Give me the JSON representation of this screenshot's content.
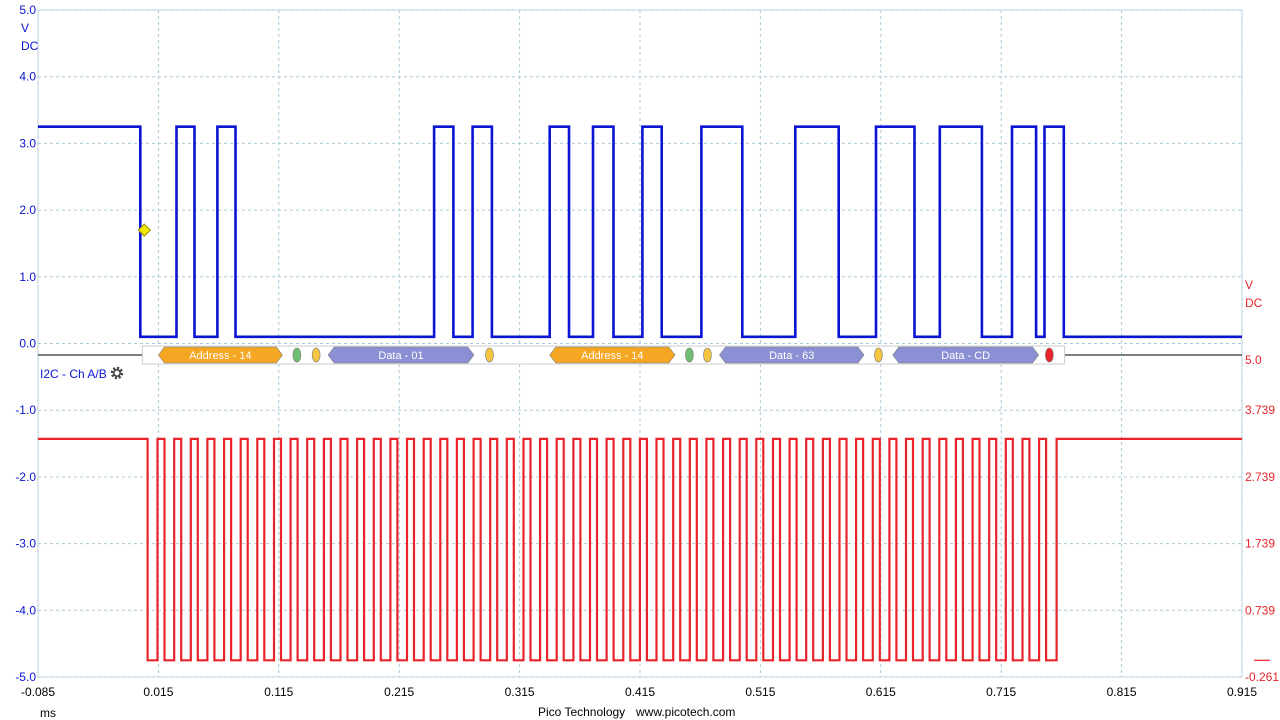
{
  "chart_data": {
    "type": "line",
    "x_axis": {
      "range": [
        -0.085,
        0.915
      ],
      "ticks": [
        "-0.085",
        "0.015",
        "0.115",
        "0.215",
        "0.315",
        "0.415",
        "0.515",
        "0.615",
        "0.715",
        "0.815",
        "0.915"
      ],
      "unit": "ms"
    },
    "y_axis_left": {
      "range": [
        -5.0,
        5.0
      ],
      "ticks": [
        "5.0",
        "4.0",
        "3.0",
        "2.0",
        "1.0",
        "0.0",
        "-1.0",
        "-2.0",
        "-3.0",
        "-4.0",
        "-5.0"
      ],
      "unit_line1": "V",
      "unit_line2": "DC",
      "color": "#0a14d2"
    },
    "y_axis_right": {
      "ticks": [
        {
          "label": "5.0",
          "at_left_v": -0.25
        },
        {
          "label": "3.739",
          "at_left_v": -1.0
        },
        {
          "label": "2.739",
          "at_left_v": -2.0
        },
        {
          "label": "1.739",
          "at_left_v": -3.0
        },
        {
          "label": "0.739",
          "at_left_v": -4.0
        },
        {
          "label": "-0.261",
          "at_left_v": -5.0
        }
      ],
      "unit_line1": "V",
      "unit_line2": "DC",
      "color": "#e8232a"
    },
    "grid": true,
    "series": [
      {
        "color": "#0a14d2",
        "low": 0.1,
        "high": 3.25,
        "transitions_ms": [
          -0.085,
          0.0,
          0.0,
          0.03,
          0.03,
          0.045,
          0.045,
          0.064,
          0.064,
          0.079,
          0.079,
          0.244,
          0.244,
          0.26,
          0.26,
          0.276,
          0.276,
          0.292,
          0.292,
          0.34,
          0.34,
          0.356,
          0.356,
          0.376,
          0.376,
          0.393,
          0.393,
          0.417,
          0.417,
          0.433,
          0.433,
          0.466,
          0.466,
          0.5,
          0.5,
          0.544,
          0.544,
          0.58,
          0.58,
          0.611,
          0.611,
          0.643,
          0.643,
          0.664,
          0.664,
          0.699,
          0.699,
          0.724,
          0.724,
          0.744,
          0.744,
          0.751,
          0.751,
          0.767,
          0.767,
          0.915
        ],
        "levels": [
          3.25,
          0.1,
          3.25,
          0.1,
          3.25,
          0.1,
          3.25,
          0.1,
          3.25,
          0.1,
          3.25,
          0.1,
          3.25,
          0.1,
          3.25,
          0.1,
          3.25,
          0.1,
          3.25,
          0.1,
          3.25,
          0.1,
          3.25,
          0.1,
          3.25,
          0.1,
          3.25,
          0.1
        ]
      },
      {
        "color": "#e8232a",
        "low": -4.75,
        "high": -1.43,
        "idle_until_ms": 0.006,
        "clock_start_ms": 0.006,
        "clock_end_ms": 0.752,
        "clock_cycles": 54,
        "idle_after_ms": 0.761
      }
    ],
    "decode": {
      "label": "I2C - Ch A/B",
      "packets": [
        {
          "text": "Address - 14",
          "start_ms": 0.015,
          "end_ms": 0.118,
          "color": "#f5a623"
        },
        {
          "text": "Data - 01",
          "start_ms": 0.156,
          "end_ms": 0.277,
          "color": "#8b8fd3"
        },
        {
          "text": "Address - 14",
          "start_ms": 0.34,
          "end_ms": 0.444,
          "color": "#f5a623"
        },
        {
          "text": "Data - 63",
          "start_ms": 0.481,
          "end_ms": 0.601,
          "color": "#8b8fd3"
        },
        {
          "text": "Data - CD",
          "start_ms": 0.625,
          "end_ms": 0.746,
          "color": "#8b8fd3"
        }
      ],
      "markers": [
        {
          "at_ms": 0.13,
          "color": "#6fbf73"
        },
        {
          "at_ms": 0.146,
          "color": "#f5c542"
        },
        {
          "at_ms": 0.29,
          "color": "#f5c542"
        },
        {
          "at_ms": 0.456,
          "color": "#6fbf73"
        },
        {
          "at_ms": 0.471,
          "color": "#f5c542"
        },
        {
          "at_ms": 0.613,
          "color": "#f5c542"
        },
        {
          "at_ms": 0.755,
          "color": "#e8232a"
        }
      ]
    },
    "trigger_marker": {
      "at_ms": 0.0,
      "v": 1.7,
      "color": "#f2e600"
    }
  },
  "footer": {
    "brand": "Pico Technology",
    "url": "www.picotech.com"
  }
}
